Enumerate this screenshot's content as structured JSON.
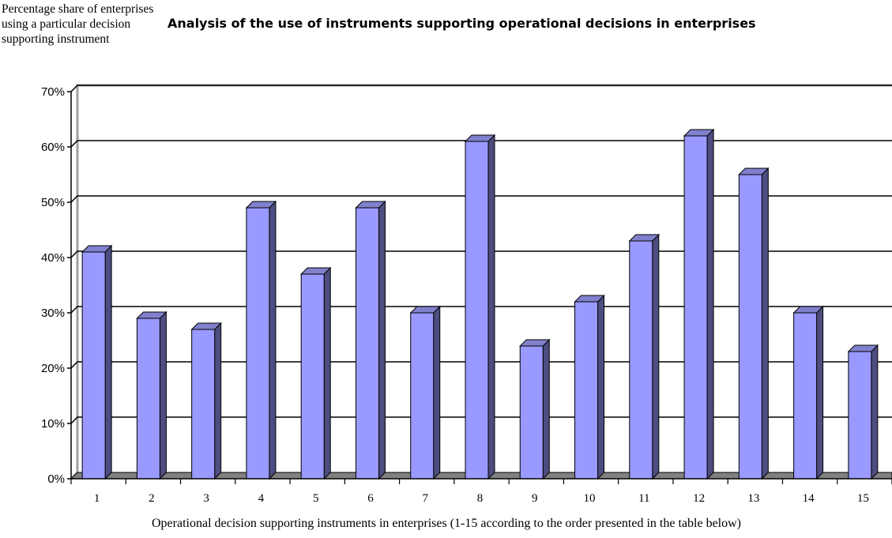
{
  "chart_data": {
    "type": "bar",
    "title": "Analysis of the use of instruments supporting operational decisions in enterprises",
    "ylabel": "Percentage share of enterprises using a particular decision supporting instrument",
    "xlabel": "Operational decision supporting instruments in enterprises (1-15 according to the order presented in the table below)",
    "categories": [
      "1",
      "2",
      "3",
      "4",
      "5",
      "6",
      "7",
      "8",
      "9",
      "10",
      "11",
      "12",
      "13",
      "14",
      "15"
    ],
    "values": [
      41,
      29,
      27,
      49,
      37,
      49,
      30,
      61,
      24,
      32,
      43,
      62,
      55,
      30,
      23
    ],
    "ylim": [
      0,
      70
    ],
    "yticks": [
      "0%",
      "10%",
      "20%",
      "30%",
      "40%",
      "50%",
      "60%",
      "70%"
    ],
    "grid": true,
    "legend": "none",
    "colors": {
      "bar_front": "#9999ff",
      "bar_side": "#4d4d80",
      "bar_top": "#8080cc",
      "floor": "#808080",
      "gridline": "#000000",
      "back_wall": "#a0a0a0"
    }
  }
}
